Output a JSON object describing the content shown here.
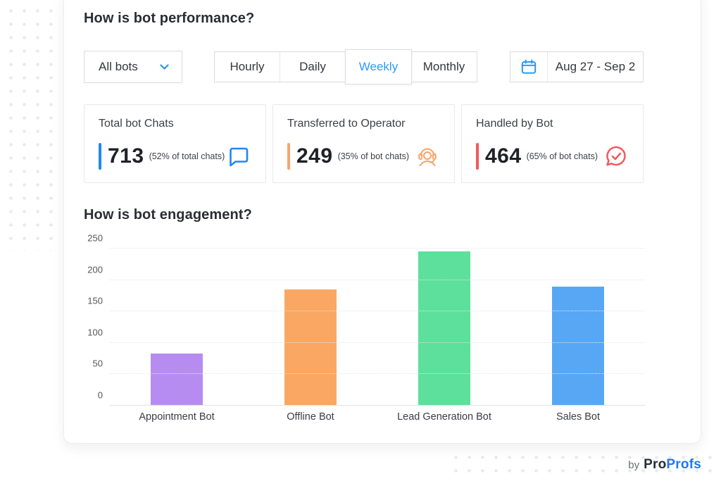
{
  "colors": {
    "accent_blue": "#2196f3",
    "selected_tab": "#2f9bf2",
    "logo_navy": "#262c3d",
    "logo_blue": "#2076f6"
  },
  "brand": {
    "by": "by",
    "pro": "Pro",
    "profs": "Profs"
  },
  "performance": {
    "title": "How is bot performance?",
    "bot_filter": {
      "value": "All bots"
    },
    "period_tabs": [
      {
        "label": "Hourly",
        "selected": false
      },
      {
        "label": "Daily",
        "selected": false
      },
      {
        "label": "Weekly",
        "selected": true
      },
      {
        "label": "Monthly",
        "selected": false
      }
    ],
    "date_range": "Aug 27 - Sep 2",
    "stats": [
      {
        "label": "Total bot Chats",
        "value": "713",
        "note": "(52% of total chats)",
        "accent": "#1f87f7",
        "icon": "chat-bubble-icon"
      },
      {
        "label": "Transferred to Operator",
        "value": "249",
        "note": "(35% of bot chats)",
        "accent": "#f8a46a",
        "icon": "operator-headset-icon"
      },
      {
        "label": "Handled by Bot",
        "value": "464",
        "note": "(65% of bot chats)",
        "accent": "#f4595c",
        "icon": "chat-check-icon"
      }
    ]
  },
  "engagement": {
    "title": "How is bot engagement?"
  },
  "chart_data": {
    "type": "bar",
    "title": "How is bot engagement?",
    "categories": [
      "Appointment Bot",
      "Offline Bot",
      "Lead Generation Bot",
      "Sales Bot"
    ],
    "values": [
      83,
      185,
      245,
      190
    ],
    "colors": [
      "#b78cf0",
      "#f9a763",
      "#5ce09b",
      "#57a7f5"
    ],
    "xlabel": "",
    "ylabel": "",
    "ylim": [
      0,
      250
    ],
    "yticks": [
      0,
      50,
      100,
      150,
      200,
      250
    ],
    "grid": true,
    "legend": false
  }
}
